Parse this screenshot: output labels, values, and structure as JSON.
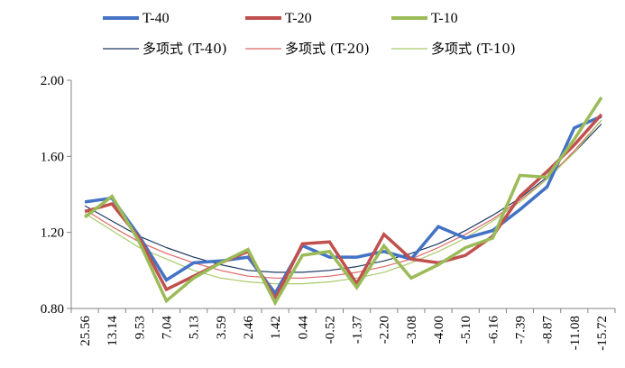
{
  "chart_data": {
    "type": "line",
    "categories": [
      "25.56",
      "13.14",
      "9.53",
      "7.04",
      "5.13",
      "3.59",
      "2.46",
      "1.42",
      "0.44",
      "-0.52",
      "-1.37",
      "-2.20",
      "-3.08",
      "-4.00",
      "-5.10",
      "-6.16",
      "-7.39",
      "-8.87",
      "-11.08",
      "-15.72"
    ],
    "ylim": [
      0.8,
      2.0
    ],
    "yticks": [
      "0.80",
      "1.20",
      "1.60",
      "2.00"
    ],
    "grid": false,
    "legend": {
      "placement": "top",
      "entries": [
        "T-40",
        "T-20",
        "T-10",
        "多项式 (T-40)",
        "多项式 (T-20)",
        "多项式 (T-10)"
      ]
    },
    "series": [
      {
        "name": "T-40",
        "color": "#4472C4",
        "values": [
          1.36,
          1.38,
          1.18,
          0.95,
          1.04,
          1.05,
          1.07,
          0.88,
          1.13,
          1.07,
          1.07,
          1.1,
          1.06,
          1.23,
          1.17,
          1.21,
          1.32,
          1.44,
          1.75,
          1.81
        ]
      },
      {
        "name": "T-20",
        "color": "#C0504D",
        "values": [
          1.31,
          1.35,
          1.17,
          0.9,
          0.97,
          1.04,
          1.1,
          0.85,
          1.14,
          1.15,
          0.93,
          1.19,
          1.06,
          1.04,
          1.08,
          1.18,
          1.39,
          1.52,
          1.66,
          1.82
        ]
      },
      {
        "name": "T-10",
        "color": "#9BBB59",
        "values": [
          1.28,
          1.39,
          1.15,
          0.84,
          0.96,
          1.04,
          1.11,
          0.83,
          1.08,
          1.1,
          0.91,
          1.13,
          0.96,
          1.03,
          1.12,
          1.17,
          1.5,
          1.49,
          1.69,
          1.91
        ]
      },
      {
        "name": "多项式 (T-40)",
        "color": "#1F3864",
        "trend": true,
        "values": [
          1.34,
          1.26,
          1.18,
          1.12,
          1.07,
          1.03,
          1.0,
          0.99,
          0.99,
          1.0,
          1.02,
          1.05,
          1.09,
          1.14,
          1.21,
          1.29,
          1.38,
          1.49,
          1.62,
          1.77
        ]
      },
      {
        "name": "多项式 (T-20)",
        "color": "#E06666",
        "trend": true,
        "values": [
          1.32,
          1.23,
          1.15,
          1.09,
          1.04,
          1.0,
          0.97,
          0.96,
          0.96,
          0.97,
          0.99,
          1.02,
          1.06,
          1.12,
          1.19,
          1.27,
          1.37,
          1.48,
          1.63,
          1.79
        ]
      },
      {
        "name": "多项式 (T-10)",
        "color": "#A9C96A",
        "trend": true,
        "values": [
          1.3,
          1.21,
          1.12,
          1.06,
          1.0,
          0.96,
          0.94,
          0.93,
          0.93,
          0.94,
          0.96,
          0.99,
          1.04,
          1.1,
          1.17,
          1.26,
          1.36,
          1.48,
          1.62,
          1.79
        ]
      }
    ]
  }
}
